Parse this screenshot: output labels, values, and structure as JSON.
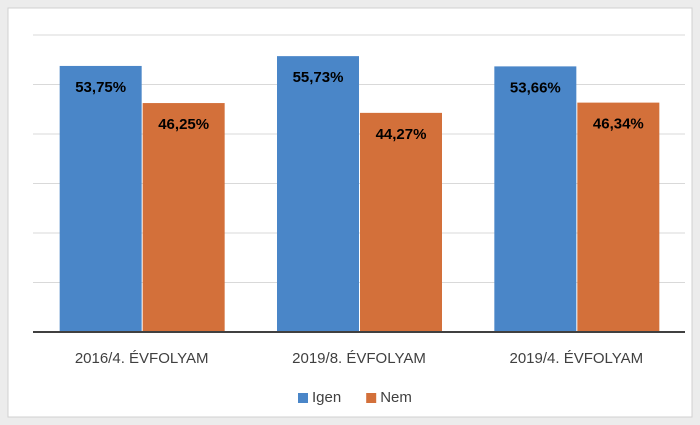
{
  "chart_data": {
    "type": "bar",
    "categories": [
      "2016/4. ÉVFOLYAM",
      "2019/8. ÉVFOLYAM",
      "2019/4. ÉVFOLYAM"
    ],
    "series": [
      {
        "name": "Igen",
        "color": "#4a86c8",
        "values": [
          53.75,
          55.73,
          53.66
        ],
        "value_labels": [
          "53,75%",
          "55,73%",
          "53,66%"
        ]
      },
      {
        "name": "Nem",
        "color": "#d3703a",
        "values": [
          46.25,
          44.27,
          46.34
        ],
        "value_labels": [
          "46,25%",
          "44,27%",
          "46,34%"
        ]
      }
    ],
    "ylim": [
      0,
      60
    ],
    "yticks": [
      0,
      10,
      20,
      30,
      40,
      50,
      60
    ],
    "grid": true,
    "legend": "bottom"
  }
}
